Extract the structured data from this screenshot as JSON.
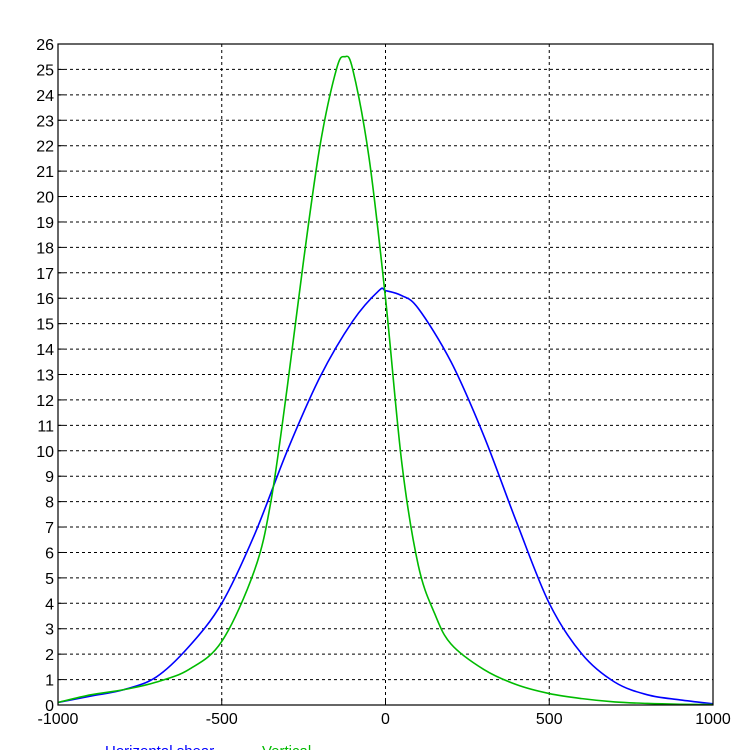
{
  "chart_data": {
    "type": "line",
    "title": "",
    "xlabel": "",
    "ylabel": "",
    "xlim": [
      -1000,
      1000
    ],
    "ylim": [
      0,
      26
    ],
    "xticks": [
      -1000,
      -500,
      0,
      500,
      1000
    ],
    "xtick_labels": [
      "-1000",
      "-500",
      "0",
      "500",
      "1000"
    ],
    "yticks": [
      0,
      1,
      2,
      3,
      4,
      5,
      6,
      7,
      8,
      9,
      10,
      11,
      12,
      13,
      14,
      15,
      16,
      17,
      18,
      19,
      20,
      21,
      22,
      23,
      24,
      25,
      26
    ],
    "ytick_labels": [
      "0",
      "1",
      "2",
      "3",
      "4",
      "5",
      "6",
      "7",
      "8",
      "9",
      "10",
      "11",
      "12",
      "13",
      "14",
      "15",
      "16",
      "17",
      "18",
      "19",
      "20",
      "21",
      "22",
      "23",
      "24",
      "25",
      "26"
    ],
    "grid": true,
    "grid_style": "dashed",
    "series": [
      {
        "color": "#0000ff",
        "x": [
          -1000,
          -900,
          -800,
          -700,
          -600,
          -500,
          -400,
          -300,
          -200,
          -100,
          -20,
          0,
          50,
          100,
          200,
          300,
          400,
          500,
          600,
          700,
          800,
          900,
          1000
        ],
        "y": [
          0.1,
          0.35,
          0.6,
          1.1,
          2.3,
          4.0,
          6.7,
          10.0,
          12.9,
          15.1,
          16.3,
          16.3,
          16.1,
          15.6,
          13.5,
          10.6,
          7.2,
          4.0,
          2.0,
          0.9,
          0.4,
          0.2,
          0.05
        ]
      },
      {
        "color": "#00bb00",
        "x": [
          -1000,
          -900,
          -800,
          -700,
          -600,
          -500,
          -400,
          -350,
          -300,
          -250,
          -200,
          -150,
          -125,
          -100,
          -50,
          0,
          50,
          100,
          150,
          200,
          300,
          400,
          500,
          600,
          700,
          800,
          900,
          1000
        ],
        "y": [
          0.1,
          0.4,
          0.6,
          0.9,
          1.4,
          2.5,
          5.3,
          8.0,
          12.5,
          17.5,
          22.0,
          25.0,
          25.5,
          25.0,
          21.5,
          16.0,
          9.5,
          5.5,
          3.6,
          2.4,
          1.4,
          0.8,
          0.45,
          0.25,
          0.12,
          0.06,
          0.03,
          0.02
        ]
      }
    ],
    "legend": {
      "position": "bottom-center",
      "entries": [
        {
          "text": "Horizontal shear",
          "color": "#0000ff"
        },
        {
          "text": "Vertical",
          "color": "#00bb00"
        }
      ]
    }
  }
}
